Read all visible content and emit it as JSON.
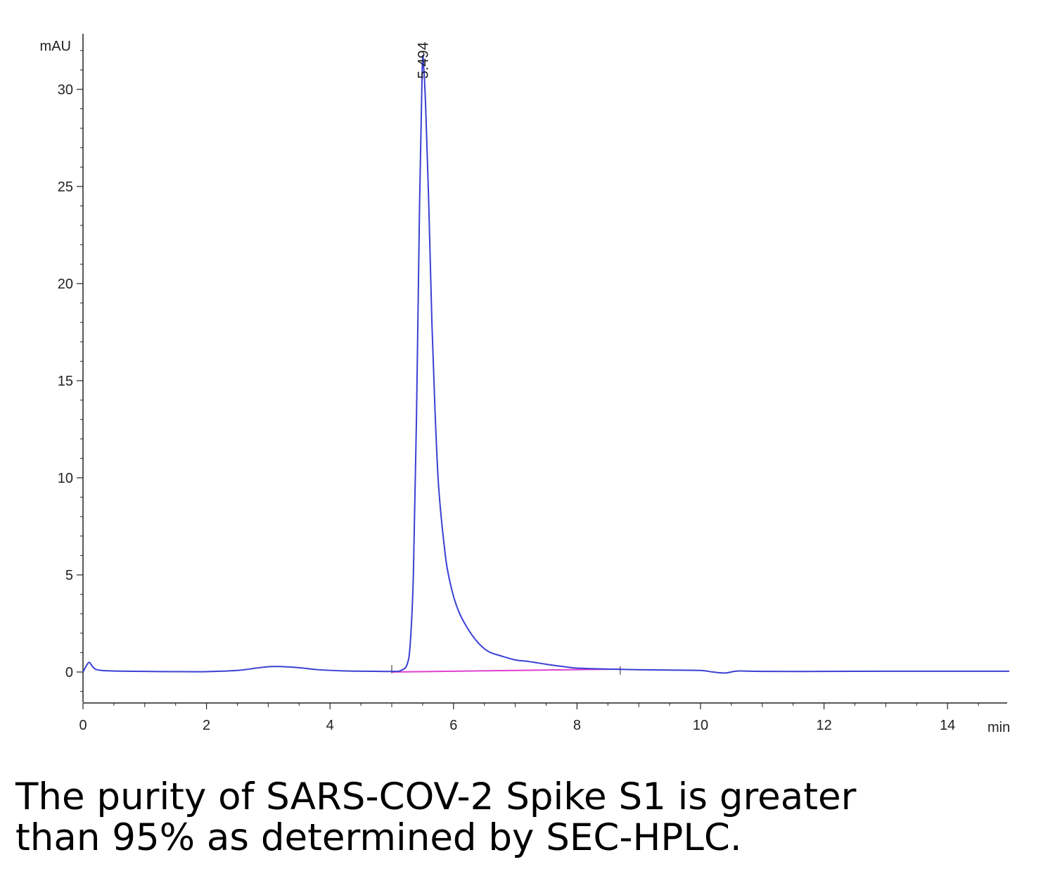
{
  "chart_data": {
    "type": "line",
    "xlabel": "min",
    "ylabel": "mAU",
    "xlim": [
      0,
      15
    ],
    "ylim": [
      -1.6,
      33
    ],
    "x_ticks": [
      0,
      2,
      4,
      6,
      8,
      10,
      12,
      14
    ],
    "y_ticks": [
      0,
      5,
      10,
      15,
      20,
      25,
      30
    ],
    "peak_annotations": [
      {
        "x": 5.494,
        "label": "5.494"
      }
    ],
    "series": [
      {
        "name": "",
        "color": "#3b3fd4",
        "points": [
          [
            0.0,
            0.0
          ],
          [
            0.05,
            0.3
          ],
          [
            0.1,
            0.5
          ],
          [
            0.15,
            0.3
          ],
          [
            0.2,
            0.15
          ],
          [
            0.3,
            0.08
          ],
          [
            0.5,
            0.05
          ],
          [
            1.0,
            0.03
          ],
          [
            1.5,
            0.02
          ],
          [
            2.0,
            0.02
          ],
          [
            2.5,
            0.08
          ],
          [
            2.8,
            0.2
          ],
          [
            3.0,
            0.27
          ],
          [
            3.2,
            0.28
          ],
          [
            3.5,
            0.22
          ],
          [
            3.8,
            0.12
          ],
          [
            4.2,
            0.06
          ],
          [
            4.6,
            0.04
          ],
          [
            5.0,
            0.03
          ],
          [
            5.15,
            0.08
          ],
          [
            5.25,
            0.4
          ],
          [
            5.3,
            1.5
          ],
          [
            5.35,
            5.0
          ],
          [
            5.4,
            13.0
          ],
          [
            5.45,
            24.0
          ],
          [
            5.494,
            31.2
          ],
          [
            5.52,
            31.0
          ],
          [
            5.55,
            29.0
          ],
          [
            5.6,
            24.0
          ],
          [
            5.65,
            18.0
          ],
          [
            5.7,
            13.5
          ],
          [
            5.75,
            10.0
          ],
          [
            5.8,
            8.0
          ],
          [
            5.85,
            6.5
          ],
          [
            5.9,
            5.3
          ],
          [
            6.0,
            3.9
          ],
          [
            6.1,
            3.0
          ],
          [
            6.2,
            2.4
          ],
          [
            6.3,
            1.9
          ],
          [
            6.4,
            1.5
          ],
          [
            6.5,
            1.2
          ],
          [
            6.6,
            1.0
          ],
          [
            6.8,
            0.8
          ],
          [
            7.0,
            0.62
          ],
          [
            7.2,
            0.55
          ],
          [
            7.5,
            0.4
          ],
          [
            7.8,
            0.27
          ],
          [
            8.0,
            0.2
          ],
          [
            8.5,
            0.15
          ],
          [
            9.0,
            0.12
          ],
          [
            9.5,
            0.1
          ],
          [
            10.0,
            0.08
          ],
          [
            10.2,
            0.0
          ],
          [
            10.4,
            -0.05
          ],
          [
            10.6,
            0.05
          ],
          [
            11.0,
            0.03
          ],
          [
            12.0,
            0.03
          ],
          [
            13.0,
            0.04
          ],
          [
            14.0,
            0.04
          ],
          [
            15.0,
            0.04
          ]
        ]
      }
    ],
    "baseline": {
      "color": "#e040d0",
      "x": [
        5.0,
        8.7
      ],
      "y": [
        0.0,
        0.15
      ]
    }
  },
  "caption": {
    "line1": "The purity of SARS-COV-2 Spike S1 is greater",
    "line2": "than 95% as determined by SEC-HPLC."
  }
}
